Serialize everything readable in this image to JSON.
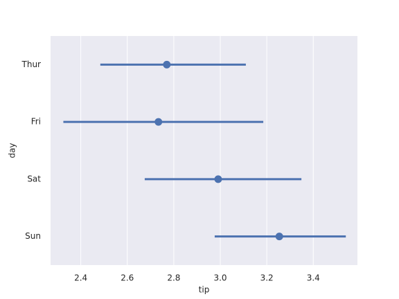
{
  "chart_data": {
    "type": "point",
    "x_label": "tip",
    "y_label": "day",
    "categories": [
      "Thur",
      "Fri",
      "Sat",
      "Sun"
    ],
    "values": [
      2.77,
      2.734,
      2.991,
      3.254
    ],
    "ci_low": [
      2.484,
      2.325,
      2.675,
      2.976
    ],
    "ci_high": [
      3.11,
      3.185,
      3.349,
      3.54
    ],
    "color": "#4c72b0",
    "xlim": [
      2.27,
      3.59
    ],
    "xticks": [
      2.4,
      2.6,
      2.8,
      {
        "value": 3.0,
        "label": "3.0"
      },
      3.2,
      3.4
    ],
    "grid": true
  }
}
